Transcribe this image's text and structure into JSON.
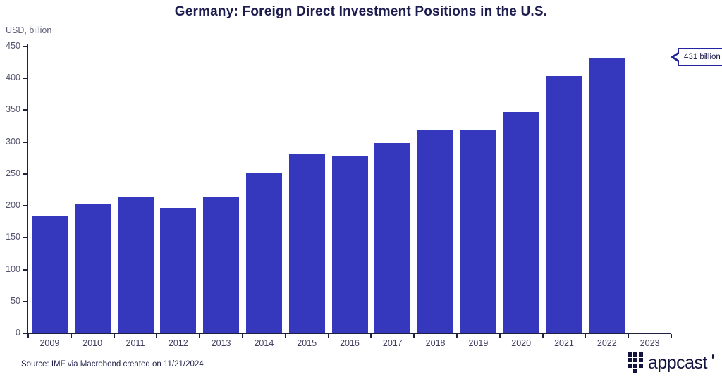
{
  "title": "Germany: Foreign Direct Investment Positions in the U.S.",
  "chart_data": {
    "type": "bar",
    "title": "Germany: Foreign Direct Investment Positions in the U.S.",
    "xlabel": "",
    "ylabel": "USD, billion",
    "ylim": [
      0,
      450
    ],
    "ytick_step": 50,
    "grid": false,
    "legend": "none",
    "bar_color": "#3538bd",
    "axis_color": "#20203f",
    "categories": [
      "2009",
      "2010",
      "2011",
      "2012",
      "2013",
      "2014",
      "2015",
      "2016",
      "2017",
      "2018",
      "2019",
      "2020",
      "2021",
      "2022",
      "2023"
    ],
    "values": [
      184,
      203,
      213,
      197,
      213,
      251,
      281,
      277,
      298,
      320,
      319,
      347,
      404,
      431,
      null
    ],
    "annotation": {
      "label": "431 billion",
      "category": "2022",
      "value": 431
    }
  },
  "callout": {
    "text": "431 billion"
  },
  "footer": {
    "source": "Source: IMF via Macrobond created on 11/21/2024",
    "brand": "appcast",
    "brand_color": "#13133f",
    "brand_mark": [
      [
        1,
        1,
        1
      ],
      [
        1,
        1,
        1
      ],
      [
        1,
        1,
        1
      ],
      [
        0,
        1,
        0
      ]
    ]
  }
}
